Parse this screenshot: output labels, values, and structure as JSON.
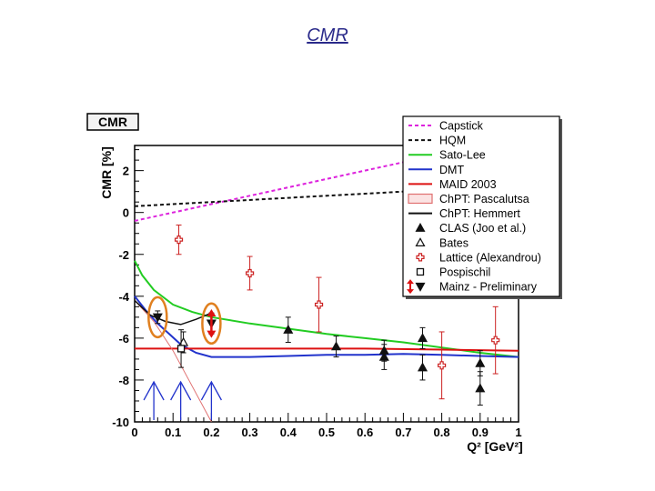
{
  "slide": {
    "title": "CMR"
  },
  "chart_data": {
    "type": "scatter",
    "title": "CMR",
    "xlabel": "Q² [GeV²]",
    "ylabel": "CMR [%]",
    "xlim": [
      0,
      1
    ],
    "ylim": [
      -10,
      3.2
    ],
    "x_ticks": [
      {
        "v": 0,
        "label": "0"
      },
      {
        "v": 0.1,
        "label": "0.1"
      },
      {
        "v": 0.2,
        "label": "0.2"
      },
      {
        "v": 0.3,
        "label": "0.3"
      },
      {
        "v": 0.4,
        "label": "0.4"
      },
      {
        "v": 0.5,
        "label": "0.5"
      },
      {
        "v": 0.6,
        "label": "0.6"
      },
      {
        "v": 0.7,
        "label": "0.7"
      },
      {
        "v": 0.8,
        "label": "0.8"
      },
      {
        "v": 0.9,
        "label": "0.9"
      },
      {
        "v": 1.0,
        "label": "1"
      }
    ],
    "y_ticks": [
      {
        "v": 2,
        "label": "2"
      },
      {
        "v": 0,
        "label": "0"
      },
      {
        "v": -2,
        "label": "-2"
      },
      {
        "v": -4,
        "label": "-4"
      },
      {
        "v": -6,
        "label": "-6"
      },
      {
        "v": -8,
        "label": "-8"
      },
      {
        "v": -10,
        "label": "-10"
      }
    ],
    "legend_position": "top-right",
    "curves": [
      {
        "name": "Capstick",
        "color": "#dd22dd",
        "dash": "4,3",
        "width": 2,
        "x": [
          0,
          0.2,
          0.4,
          0.6,
          0.7
        ],
        "y": [
          -0.4,
          0.4,
          1.2,
          2.0,
          2.4
        ]
      },
      {
        "name": "HQM",
        "color": "#111111",
        "dash": "4,3",
        "width": 2,
        "x": [
          0,
          0.2,
          0.4,
          0.6,
          0.7
        ],
        "y": [
          0.3,
          0.5,
          0.7,
          0.9,
          1.0
        ]
      },
      {
        "name": "Sato-Lee",
        "color": "#22cc22",
        "dash": "",
        "width": 2,
        "x": [
          0,
          0.02,
          0.05,
          0.1,
          0.15,
          0.2,
          0.3,
          0.4,
          0.5,
          0.6,
          0.7,
          0.8,
          0.9,
          1.0
        ],
        "y": [
          -2.3,
          -3.0,
          -3.7,
          -4.4,
          -4.75,
          -5.0,
          -5.3,
          -5.55,
          -5.8,
          -6.0,
          -6.2,
          -6.45,
          -6.7,
          -6.9
        ]
      },
      {
        "name": "DMT",
        "color": "#2233cc",
        "dash": "",
        "width": 2,
        "x": [
          0,
          0.03,
          0.06,
          0.09,
          0.12,
          0.16,
          0.2,
          0.3,
          0.4,
          0.5,
          0.6,
          0.7,
          0.8,
          0.9,
          1.0
        ],
        "y": [
          -4.0,
          -4.7,
          -5.3,
          -5.8,
          -6.3,
          -6.7,
          -6.9,
          -6.9,
          -6.85,
          -6.8,
          -6.8,
          -6.75,
          -6.8,
          -6.85,
          -6.9
        ]
      },
      {
        "name": "MAID 2003",
        "color": "#dd1111",
        "dash": "",
        "width": 2,
        "x": [
          0,
          0.2,
          0.4,
          0.6,
          0.8,
          1.0
        ],
        "y": [
          -6.5,
          -6.5,
          -6.5,
          -6.5,
          -6.55,
          -6.6
        ]
      },
      {
        "name": "ChPT: Pascalutsa",
        "color": "#e07070",
        "dash": "",
        "width": 1,
        "x": [
          0,
          0.05,
          0.1,
          0.15,
          0.2
        ],
        "y": [
          -4.2,
          -5.2,
          -6.6,
          -8.3,
          -10.0
        ]
      },
      {
        "name": "ChPT: Hemmert",
        "color": "#111111",
        "dash": "",
        "width": 1.5,
        "x": [
          0,
          0.04,
          0.08,
          0.12,
          0.16,
          0.2
        ],
        "y": [
          -4.2,
          -4.9,
          -5.2,
          -5.35,
          -5.1,
          -4.8
        ]
      }
    ],
    "points": [
      {
        "series": "CLAS (Joo et al.)",
        "marker": "triangle-up-filled",
        "color": "#111111",
        "x": [
          0.4,
          0.525,
          0.65,
          0.75,
          0.9
        ],
        "y": [
          -5.6,
          -6.4,
          -6.6,
          -6.0,
          -7.2
        ],
        "yerr": [
          0.6,
          0.5,
          0.5,
          0.5,
          0.6
        ]
      },
      {
        "series": "CLAS (Joo et al.)",
        "marker": "triangle-up-filled",
        "color": "#111111",
        "x": [
          0.65,
          0.75,
          0.9
        ],
        "y": [
          -6.9,
          -7.4,
          -8.4
        ],
        "yerr": [
          0.6,
          0.6,
          0.8
        ]
      },
      {
        "series": "Bates",
        "marker": "triangle-up-open",
        "color": "#111111",
        "x": [
          0.127
        ],
        "y": [
          -6.2
        ],
        "yerr": [
          0.5
        ]
      },
      {
        "series": "Lattice (Alexandrou)",
        "marker": "cross-open",
        "color": "#cc2222",
        "x": [
          0.115,
          0.3,
          0.48,
          0.8,
          0.94
        ],
        "y": [
          -1.3,
          -2.9,
          -4.4,
          -7.3,
          -6.1
        ],
        "yerr": [
          0.7,
          0.8,
          1.3,
          1.6,
          1.6
        ]
      },
      {
        "series": "Pospischil",
        "marker": "square-open",
        "color": "#111111",
        "x": [
          0.121
        ],
        "y": [
          -6.5
        ],
        "yerr": [
          0.9
        ]
      },
      {
        "series": "Mainz - Preliminary",
        "marker": "triangle-down-filled",
        "color": "#111111",
        "x": [
          0.06,
          0.2
        ],
        "y": [
          -5.0,
          -5.3
        ],
        "yerr": [
          0.3,
          0.5
        ]
      }
    ],
    "legend": [
      {
        "label": "Capstick",
        "kind": "line",
        "color": "#dd22dd",
        "dash": "4,3"
      },
      {
        "label": "HQM",
        "kind": "line",
        "color": "#111111",
        "dash": "4,3"
      },
      {
        "label": "Sato-Lee",
        "kind": "line",
        "color": "#22cc22",
        "dash": ""
      },
      {
        "label": "DMT",
        "kind": "line",
        "color": "#2233cc",
        "dash": ""
      },
      {
        "label": "MAID 2003",
        "kind": "line",
        "color": "#dd1111",
        "dash": ""
      },
      {
        "label": "ChPT: Pascalutsa",
        "kind": "band",
        "color": "#e07070",
        "dash": ""
      },
      {
        "label": "ChPT: Hemmert",
        "kind": "line",
        "color": "#111111",
        "dash": ""
      },
      {
        "label": "CLAS (Joo et al.)",
        "kind": "triangle-up-filled",
        "color": "#111111",
        "dash": ""
      },
      {
        "label": "Bates",
        "kind": "triangle-up-open",
        "color": "#111111",
        "dash": ""
      },
      {
        "label": "Lattice (Alexandrou)",
        "kind": "cross-open",
        "color": "#cc2222",
        "dash": ""
      },
      {
        "label": "Pospischil",
        "kind": "square-open",
        "color": "#111111",
        "dash": ""
      },
      {
        "label": "Mainz - Preliminary",
        "kind": "triangle-down-filled",
        "color": "#111111",
        "dash": ""
      }
    ],
    "annotations": {
      "ovals": [
        {
          "x": 0.06,
          "y": -5.0,
          "color": "#e08020"
        },
        {
          "x": 0.2,
          "y": -5.3,
          "color": "#e08020"
        }
      ],
      "red_double_arrow": {
        "x": 0.2,
        "y1": -4.7,
        "y2": -5.9,
        "color": "#dd1111"
      },
      "blue_arrows": [
        {
          "x": 0.05,
          "color": "#2233cc"
        },
        {
          "x": 0.12,
          "color": "#2233cc"
        },
        {
          "x": 0.2,
          "color": "#2233cc"
        }
      ]
    }
  }
}
